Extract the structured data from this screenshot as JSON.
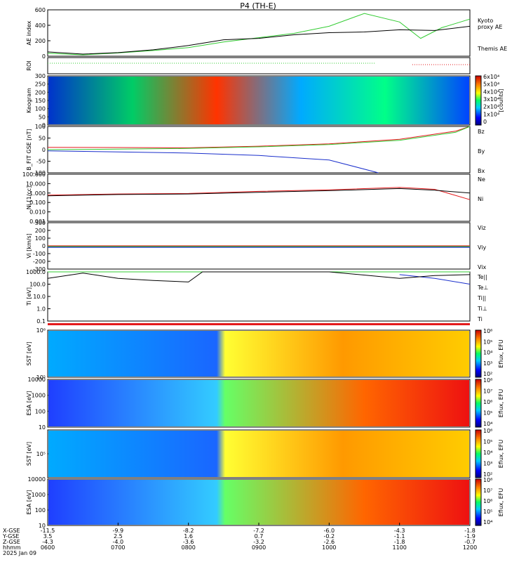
{
  "title": "P4 (TH-E)",
  "colors": {
    "black": "#000000",
    "green": "#33cc33",
    "red": "#e41a1c",
    "blue": "#1a2fcc",
    "cyan": "#00cccc"
  },
  "chart_data": [
    {
      "type": "line",
      "ylabel": "AE index",
      "yticks": [
        "0",
        "200",
        "400",
        "600"
      ],
      "ylim": [
        0,
        650
      ],
      "series": [
        {
          "name": "Kyoto proxy AE",
          "color": "#33cc33",
          "x": [
            6.0,
            6.5,
            7.0,
            7.5,
            8.0,
            8.5,
            9.0,
            9.5,
            10.0,
            10.5,
            11.0,
            11.3,
            11.6,
            12.0
          ],
          "values": [
            40,
            20,
            45,
            80,
            120,
            200,
            260,
            320,
            420,
            600,
            480,
            250,
            400,
            520
          ]
        },
        {
          "name": "Themis AE",
          "color": "#000000",
          "x": [
            6.0,
            6.5,
            7.0,
            7.5,
            8.0,
            8.5,
            9.0,
            9.5,
            10.0,
            10.5,
            11.0,
            11.5,
            12.0
          ],
          "values": [
            60,
            30,
            50,
            90,
            150,
            230,
            250,
            300,
            330,
            340,
            370,
            360,
            420
          ]
        }
      ],
      "legend": [
        "Kyoto",
        "proxy AE",
        "Themis AE"
      ]
    },
    {
      "type": "line",
      "ylabel": "ROI"
    },
    {
      "type": "heatmap",
      "ylabel": "Keogram",
      "yticks": [
        "0",
        "50",
        "100",
        "150",
        "200",
        "250",
        "300"
      ],
      "colorbar_ticks": [
        "0",
        "1x10⁴",
        "2x10⁴",
        "3x10⁴",
        "4x10⁴",
        "5x10⁴",
        "6x10⁴"
      ],
      "colorbar_label": "[counts]"
    },
    {
      "type": "line",
      "ylabel": "B_FIT GSE [nT]",
      "yticks": [
        "-100",
        "-50",
        "0",
        "50",
        "100"
      ],
      "series": [
        {
          "name": "Bz",
          "color": "#e41a1c",
          "x": [
            6,
            7,
            8,
            9,
            10,
            11,
            11.8,
            12
          ],
          "values": [
            10,
            9,
            8,
            15,
            25,
            45,
            80,
            100
          ]
        },
        {
          "name": "By",
          "color": "#33cc33",
          "x": [
            6,
            7,
            8,
            9,
            10,
            11,
            11.8,
            12
          ],
          "values": [
            0,
            2,
            5,
            12,
            22,
            40,
            75,
            100
          ]
        },
        {
          "name": "Bx",
          "color": "#1a2fcc",
          "x": [
            6,
            7,
            8,
            9,
            10,
            10.7
          ],
          "values": [
            -5,
            -10,
            -15,
            -25,
            -45,
            -100
          ]
        }
      ]
    },
    {
      "type": "line",
      "ylabel": "Ni [1/cc]",
      "yticks": [
        "0.001",
        "0.010",
        "0.100",
        "1.000",
        "10.000",
        "100.000"
      ],
      "series": [
        {
          "name": "Ne",
          "color": "#e41a1c",
          "x": [
            6,
            7,
            8,
            9,
            10,
            11,
            11.5,
            12
          ],
          "values": [
            0.6,
            0.8,
            0.9,
            1.5,
            2.2,
            4.0,
            2.5,
            0.2
          ]
        },
        {
          "name": "Ni",
          "color": "#000000",
          "x": [
            6,
            7,
            8,
            9,
            10,
            11,
            11.5,
            12
          ],
          "values": [
            0.5,
            0.7,
            0.8,
            1.2,
            1.8,
            3.0,
            2.0,
            1.0
          ]
        }
      ]
    },
    {
      "type": "line",
      "ylabel": "Vi [km/s]",
      "yticks": [
        "-300",
        "-200",
        "-100",
        "0",
        "100",
        "200",
        "300"
      ],
      "series": [
        {
          "name": "Viz",
          "color": "#e41a1c"
        },
        {
          "name": "Viy",
          "color": "#33cc33"
        },
        {
          "name": "Vix",
          "color": "#1a2fcc"
        }
      ]
    },
    {
      "type": "line",
      "ylabel": "Ti [eV]",
      "yticks": [
        "0.1",
        "1.0",
        "10.0",
        "100.0",
        "1000.0"
      ],
      "series": [
        {
          "name": "Te||",
          "color": "#000000"
        },
        {
          "name": "Te⊥",
          "color": "#e41a1c"
        },
        {
          "name": "Ti||",
          "color": "#33cc33",
          "x": [
            6,
            8,
            9,
            10,
            11,
            12
          ],
          "values": [
            3000,
            3500,
            3500,
            3200,
            3500,
            1000
          ]
        },
        {
          "name": "Ti⊥",
          "color": "#1a2fcc",
          "x": [
            11,
            11.5,
            12
          ],
          "values": [
            600,
            300,
            100
          ]
        },
        {
          "name": "Ti",
          "color": "#000000",
          "x": [
            6,
            6.5,
            7,
            7.5,
            8,
            8.2,
            9,
            10,
            11,
            11.5,
            12
          ],
          "values": [
            300,
            800,
            300,
            200,
            150,
            2500,
            2200,
            1800,
            300,
            500,
            600
          ]
        }
      ]
    },
    {
      "type": "heatmap",
      "ylabel": "SST [eV]",
      "yticks": [
        "10⁵",
        "10⁶"
      ],
      "colorbar_ticks": [
        "10²",
        "10³",
        "10⁴",
        "10⁵",
        "10⁶"
      ],
      "colorbar_label": "Eflux, EFU"
    },
    {
      "type": "heatmap",
      "ylabel": "ESA [eV]",
      "yticks": [
        "10",
        "100",
        "1000",
        "10000"
      ],
      "colorbar_ticks": [
        "10⁴",
        "10⁵",
        "10⁶",
        "10⁷",
        "10⁸"
      ],
      "colorbar_label": "Eflux, EFU"
    },
    {
      "type": "heatmap",
      "ylabel": "SST [eV]",
      "yticks": [
        "10⁵"
      ],
      "colorbar_ticks": [
        "10²",
        "10³",
        "10⁴",
        "10⁵",
        "10⁶"
      ],
      "colorbar_label": "Eflux, EFU"
    },
    {
      "type": "heatmap",
      "ylabel": "ESA [eV]",
      "yticks": [
        "10",
        "100",
        "1000",
        "10000"
      ],
      "colorbar_ticks": [
        "10⁴",
        "10⁵",
        "10⁶",
        "10⁷",
        "10⁸"
      ],
      "colorbar_label": "Eflux, EFU"
    }
  ],
  "xaxis": {
    "row_labels": [
      "X-GSE",
      "Y-GSE",
      "Z-GSE",
      "hhmm",
      "2025 Jan 09"
    ],
    "ticks": [
      {
        "x": "-11.5",
        "y": "3.5",
        "z": "-4.3",
        "t": "0600"
      },
      {
        "x": "-9.9",
        "y": "2.5",
        "z": "-4.0",
        "t": "0700"
      },
      {
        "x": "-8.2",
        "y": "1.6",
        "z": "-3.6",
        "t": "0800"
      },
      {
        "x": "-7.2",
        "y": "0.7",
        "z": "-3.2",
        "t": "0900"
      },
      {
        "x": "-6.0",
        "y": "-0.2",
        "z": "-2.6",
        "t": "1000"
      },
      {
        "x": "-4.3",
        "y": "-1.1",
        "z": "-1.8",
        "t": "1100"
      },
      {
        "x": "-1.8",
        "y": "-1.9",
        "z": "-0.7",
        "t": "1200"
      }
    ]
  }
}
